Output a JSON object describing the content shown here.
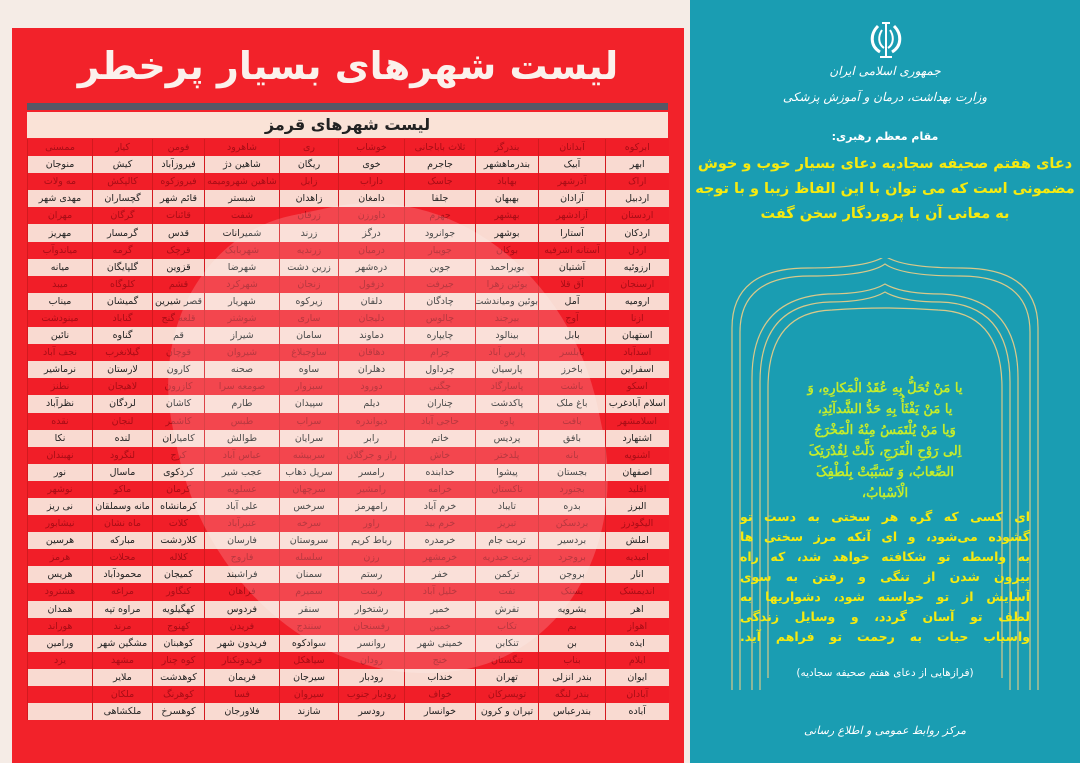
{
  "main_title": "لیست شهرهای بسیار پرخطر",
  "table": {
    "title": "لیست شهرهای قرمز",
    "rows": [
      [
        "ابرکوه",
        "آبدانان",
        "بندرگز",
        "ثلاث باباجانی",
        "خوشاب",
        "ری",
        "شاهرود",
        "فومن",
        "کیار",
        "ممسنی"
      ],
      [
        "ابهر",
        "آبیک",
        "بندرماهشهر",
        "جاجرم",
        "خوی",
        "ریگان",
        "شاهین دژ",
        "فیروزآباد",
        "کیش",
        "منوجان"
      ],
      [
        "اراک",
        "آذرشهر",
        "بهاباد",
        "جاسک",
        "داراب",
        "زابل",
        "شاهین شهرومیمه",
        "فیروزکوه",
        "کالپکش",
        "مه ولات"
      ],
      [
        "اردبیل",
        "آرادان",
        "بهبهان",
        "جلفا",
        "دامغان",
        "زاهدان",
        "شبستر",
        "قائم شهر",
        "گچساران",
        "مهدی شهر"
      ],
      [
        "اردستان",
        "آزادشهر",
        "بهشهر",
        "جهرم",
        "داورزن",
        "زرقان",
        "شفت",
        "قائنات",
        "گرگان",
        "مهران"
      ],
      [
        "اردکان",
        "آستارا",
        "بوشهر",
        "جوانرود",
        "درگز",
        "زرند",
        "شمیرانات",
        "قدس",
        "گرمسار",
        "مهریز"
      ],
      [
        "اردل",
        "آستانه اشرفیه",
        "بوکان",
        "جویبار",
        "درمیان",
        "زرندیه",
        "شهربابک",
        "قرچک",
        "گرمه",
        "میاندوآب"
      ],
      [
        "ارزوئیه",
        "آشتیان",
        "بویراحمد",
        "جوین",
        "دره‌شهر",
        "زرین دشت",
        "شهرضا",
        "قزوین",
        "گلپایگان",
        "میانه"
      ],
      [
        "ارسنجان",
        "آق قلا",
        "بوئین زهرا",
        "جیرفت",
        "دزفول",
        "زنجان",
        "شهرکرد",
        "قشم",
        "کلوگاه",
        "میبد"
      ],
      [
        "ارومیه",
        "آمل",
        "بوئین ومیاندشت",
        "چادگان",
        "دلفان",
        "زیرکوه",
        "شهریار",
        "قصر شیرین",
        "گمیشان",
        "میناب"
      ],
      [
        "ازنا",
        "آوج",
        "بیرجند",
        "چالوس",
        "دلیجان",
        "ساری",
        "شوشتر",
        "قلعه گنج",
        "گناباد",
        "مینودشت"
      ],
      [
        "استهبان",
        "بابل",
        "بینالود",
        "چایپاره",
        "دماوند",
        "سامان",
        "شیراز",
        "قم",
        "گناوه",
        "نائین"
      ],
      [
        "اسدآباد",
        "بابلسر",
        "پارس آباد",
        "چرام",
        "دهاقان",
        "ساوجبلاغ",
        "شیروان",
        "قوچان",
        "گیلانغرب",
        "نجف آباد"
      ],
      [
        "اسفراین",
        "باخرز",
        "پارسیان",
        "چرداول",
        "دهلران",
        "ساوه",
        "صحنه",
        "کارون",
        "لارستان",
        "نرماشیر"
      ],
      [
        "اسکو",
        "باشت",
        "پاسارگاد",
        "چگنی",
        "دورود",
        "سبزوار",
        "صومعه سرا",
        "کازرون",
        "لاهیجان",
        "نطنز"
      ],
      [
        "اسلام آبادغرب",
        "باغ ملک",
        "پاکدشت",
        "چناران",
        "دیلم",
        "سپیدان",
        "طارم",
        "کاشان",
        "لردگان",
        "نظرآباد"
      ],
      [
        "اسلامشهر",
        "بافت",
        "پاوه",
        "حاجی آباد",
        "دیواندره",
        "سراب",
        "طبس",
        "کاشمر",
        "لنجان",
        "نقده"
      ],
      [
        "اشتهارد",
        "بافق",
        "پردیس",
        "خاتم",
        "رابر",
        "سرایان",
        "طوالش",
        "کامیاران",
        "لنده",
        "نکا"
      ],
      [
        "اشنویه",
        "بانه",
        "پلدختر",
        "خاش",
        "راز و جرگلان",
        "سربیشه",
        "عباس آباد",
        "کرج",
        "لنگرود",
        "نهبندان"
      ],
      [
        "اصفهان",
        "بجستان",
        "پیشوا",
        "خدابنده",
        "رامسر",
        "سرپل ذهاب",
        "عجب شیر",
        "کردکوی",
        "ماسال",
        "نور"
      ],
      [
        "اقلید",
        "بجنورد",
        "تاکستان",
        "خرامه",
        "رامشیر",
        "سرچهان",
        "عسلویه",
        "کرمان",
        "ماکو",
        "نوشهر"
      ],
      [
        "البرز",
        "بدره",
        "تایباد",
        "خرم آباد",
        "رامهرمز",
        "سرخس",
        "علی آباد",
        "کرمانشاه",
        "مانه وسملقان",
        "نی ریز"
      ],
      [
        "الیگودرز",
        "بردسکن",
        "تبریز",
        "خرم بید",
        "راور",
        "سرخه",
        "عنبرآباد",
        "کلات",
        "ماه نشان",
        "نیشابور"
      ],
      [
        "املش",
        "بردسیر",
        "تربت جام",
        "خرمدره",
        "رباط کریم",
        "سروستان",
        "فارسان",
        "کلاردشت",
        "مبارکه",
        "هرسین"
      ],
      [
        "امیدیه",
        "بروجرد",
        "تربت حیدریه",
        "خرمشهر",
        "رزن",
        "سلسله",
        "فاروج",
        "کلاله",
        "محلات",
        "هرمز"
      ],
      [
        "انار",
        "بروجن",
        "ترکمن",
        "خفر",
        "رستم",
        "سمنان",
        "فراشبند",
        "کمیجان",
        "محمودآباد",
        "هریس"
      ],
      [
        "اندیمشک",
        "بستک",
        "تفت",
        "خلیل آباد",
        "رشت",
        "سمیرم",
        "فراهان",
        "کنگاور",
        "مراغه",
        "هشترود"
      ],
      [
        "اهر",
        "بشرویه",
        "تفرش",
        "خمیر",
        "رشتخوار",
        "سنقر",
        "فردوس",
        "کهگیلویه",
        "مراوه تپه",
        "همدان"
      ],
      [
        "اهواز",
        "بم",
        "تکاب",
        "خمین",
        "رفسنجان",
        "سنندج",
        "فریدن",
        "کهنوج",
        "مرند",
        "هوراند"
      ],
      [
        "ایذه",
        "بن",
        "تنکابن",
        "خمینی شهر",
        "روانسر",
        "سوادکوه",
        "فریدون شهر",
        "کوهبنان",
        "مشگین شهر",
        "ورامین"
      ],
      [
        "ایلام",
        "بناب",
        "تنگستان",
        "خنج",
        "رودان",
        "سیاهکل",
        "فریدونکنار",
        "کوه چنار",
        "مشهد",
        "یزد"
      ],
      [
        "ایوان",
        "بندر انزلی",
        "تهران",
        "خنداب",
        "رودبار",
        "سیرجان",
        "فریمان",
        "کوهدشت",
        "ملایر",
        ""
      ],
      [
        "آبادان",
        "بندر لنگه",
        "تویسرکان",
        "خواف",
        "رودبار جنوب",
        "سیروان",
        "فسا",
        "کوهرنگ",
        "ملکان",
        ""
      ],
      [
        "آباده",
        "بندرعباس",
        "تیران و کرون",
        "خوانسار",
        "رودسر",
        "شازند",
        "فلاورجان",
        "کوهسرخ",
        "ملکشاهی",
        ""
      ]
    ]
  },
  "right_panel": {
    "emblem_icon": "iran-emblem-icon",
    "gov_line1": "جمهوری اسلامی ایران",
    "gov_line2": "وزارت بهداشت، درمان و آموزش پزشکی",
    "leader_label": "مقام معظم رهبری:",
    "quote_lines": [
      "دعای هفتم صحیفه سجادیه دعای بسیار خوب و خوش",
      "مضمونی است که می توان با این الفاظ زیبا و با توجه",
      "به معانی آن با پروردگار سخن گفت"
    ],
    "arabic_lines": [
      "یا مَنْ تُحَلُّ بِهِ عُقَدُ الْمَکارِهِ، وَ",
      "یا مَنْ یَفْثَأُ بِهِ حَدُّ الشَّدآئِدِ،",
      "وَیا مَنْ یُلْتَمَسُ مِنْهُ الْمَخْرَجُ",
      "اِلی رَوْحِ الْفَرَجِ، ذَلَّتْ لِقُدْرَتِکَ",
      "الصِّعابُ، وَ تَسَبَّبَتْ بِلُطْفِکَ",
      "الْاَسْبابُ،"
    ],
    "persian_lines": [
      "ای کسی که گره هر سختی به دست تو",
      "گشوده می‌شود، و ای آنکه مرز سختی ها",
      "به واسطه تو شکافته خواهد شد، که راه",
      "بیرون شدن از تنگی و رفتن به سوی",
      "آسایش از تو خواسته شود، دشواریها به",
      "لطف تو آسان گردد، و وسایل زندگی",
      "واسباب حیات به رحمت تو فراهم آید."
    ],
    "caption": "(فرازهایی از دعای هفتم صحیفه سجادیه)",
    "footer": "مرکز روابط عمومی و اطلاع رسانی"
  },
  "colors": {
    "red": "#f2222a",
    "teal": "#1a9db2",
    "yellow": "#f6ea10",
    "green_yellow": "#c4ec2c",
    "cream": "#fae3d7"
  }
}
